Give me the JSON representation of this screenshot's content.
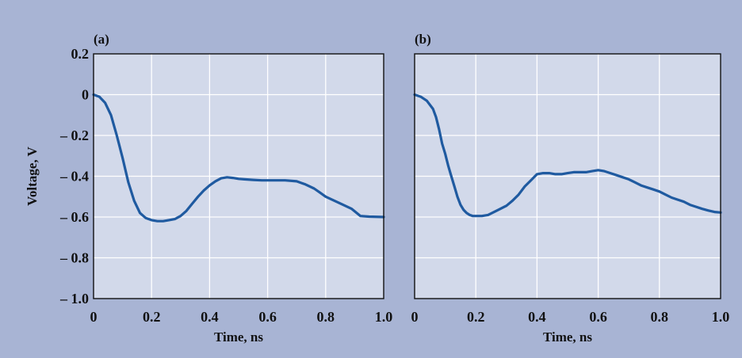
{
  "colors": {
    "outer_background": "#a8b4d4",
    "plot_background": "#d2d9ea",
    "grid": "#ffffff",
    "curve": "#1f5aa0",
    "frame": "#111111",
    "text": "#111111"
  },
  "chart_data": [
    {
      "type": "line",
      "panel_label": "(a)",
      "xlabel": "Time, ns",
      "ylabel": "Voltage, V",
      "xlim": [
        0,
        1.0
      ],
      "ylim": [
        -1.0,
        0.2
      ],
      "xticks": [
        "0",
        "0.2",
        "0.4",
        "0.6",
        "0.8",
        "1.0"
      ],
      "yticks": [
        "0.2",
        "0",
        "– 0.2",
        "– 0.4",
        "– 0.6",
        "– 0.8",
        "– 1.0"
      ],
      "grid": true,
      "legend": "none",
      "series": [
        {
          "x": [
            0,
            0.02,
            0.04,
            0.06,
            0.08,
            0.1,
            0.12,
            0.14,
            0.16,
            0.18,
            0.2,
            0.22,
            0.24,
            0.26,
            0.28,
            0.3,
            0.32,
            0.34,
            0.36,
            0.38,
            0.4,
            0.42,
            0.44,
            0.46,
            0.48,
            0.5,
            0.52,
            0.55,
            0.58,
            0.62,
            0.66,
            0.7,
            0.73,
            0.76,
            0.78,
            0.8,
            0.83,
            0.86,
            0.89,
            0.92,
            0.95,
            1.0
          ],
          "y": [
            0,
            -0.01,
            -0.04,
            -0.1,
            -0.2,
            -0.31,
            -0.43,
            -0.52,
            -0.58,
            -0.605,
            -0.615,
            -0.62,
            -0.62,
            -0.615,
            -0.61,
            -0.595,
            -0.57,
            -0.535,
            -0.5,
            -0.47,
            -0.445,
            -0.425,
            -0.41,
            -0.405,
            -0.408,
            -0.413,
            -0.415,
            -0.418,
            -0.42,
            -0.42,
            -0.42,
            -0.425,
            -0.44,
            -0.46,
            -0.48,
            -0.5,
            -0.52,
            -0.54,
            -0.56,
            -0.595,
            -0.598,
            -0.6
          ]
        }
      ]
    },
    {
      "type": "line",
      "panel_label": "(b)",
      "xlabel": "Time, ns",
      "ylabel": "",
      "xlim": [
        0,
        1.0
      ],
      "ylim": [
        -1.0,
        0.2
      ],
      "xticks": [
        "0",
        "0.2",
        "0.4",
        "0.6",
        "0.8",
        "1.0"
      ],
      "yticks": [],
      "grid": true,
      "legend": "none",
      "series": [
        {
          "x": [
            0,
            0.02,
            0.04,
            0.06,
            0.07,
            0.08,
            0.09,
            0.1,
            0.11,
            0.12,
            0.13,
            0.14,
            0.15,
            0.16,
            0.17,
            0.18,
            0.19,
            0.2,
            0.22,
            0.24,
            0.26,
            0.28,
            0.3,
            0.32,
            0.34,
            0.36,
            0.38,
            0.4,
            0.42,
            0.44,
            0.46,
            0.48,
            0.5,
            0.52,
            0.54,
            0.56,
            0.58,
            0.6,
            0.62,
            0.64,
            0.66,
            0.68,
            0.7,
            0.72,
            0.74,
            0.76,
            0.78,
            0.8,
            0.82,
            0.84,
            0.86,
            0.88,
            0.9,
            0.92,
            0.94,
            0.96,
            0.98,
            1.0
          ],
          "y": [
            0,
            -0.01,
            -0.03,
            -0.07,
            -0.11,
            -0.17,
            -0.24,
            -0.29,
            -0.35,
            -0.4,
            -0.45,
            -0.5,
            -0.54,
            -0.565,
            -0.58,
            -0.59,
            -0.595,
            -0.595,
            -0.595,
            -0.59,
            -0.575,
            -0.56,
            -0.545,
            -0.52,
            -0.49,
            -0.45,
            -0.42,
            -0.39,
            -0.385,
            -0.385,
            -0.39,
            -0.39,
            -0.385,
            -0.38,
            -0.38,
            -0.38,
            -0.375,
            -0.37,
            -0.375,
            -0.385,
            -0.395,
            -0.405,
            -0.415,
            -0.43,
            -0.445,
            -0.455,
            -0.465,
            -0.475,
            -0.49,
            -0.505,
            -0.515,
            -0.525,
            -0.54,
            -0.55,
            -0.56,
            -0.568,
            -0.575,
            -0.578
          ]
        }
      ]
    }
  ]
}
